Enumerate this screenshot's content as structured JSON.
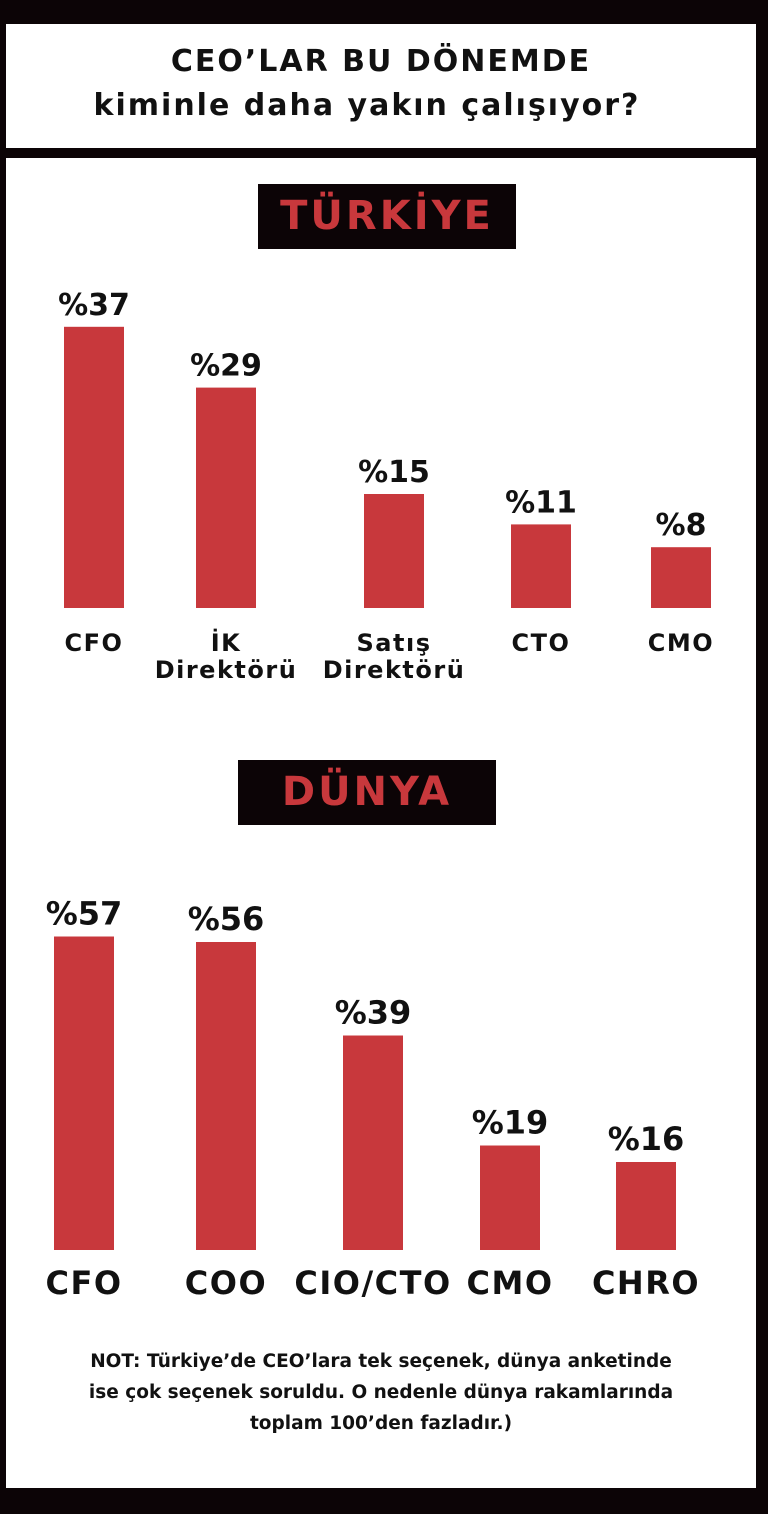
{
  "header": {
    "title_line1": "CEO’LAR BU DÖNEMDE",
    "title_line2": "kiminle daha yakın çalışıyor?"
  },
  "colors": {
    "bar": "#c8383c",
    "frame": "#0c0406",
    "section_text": "#c8383c"
  },
  "chart_data": [
    {
      "type": "bar",
      "title": "TÜRKİYE",
      "value_prefix": "%",
      "categories": [
        [
          "CFO"
        ],
        [
          "İK",
          "Direktörü"
        ],
        [
          "Satış",
          "Direktörü"
        ],
        [
          "CTO"
        ],
        [
          "CMO"
        ]
      ],
      "values": [
        37,
        29,
        15,
        11,
        8
      ],
      "data_labels": [
        "%37",
        "%29",
        "%15",
        "%11",
        "%8"
      ]
    },
    {
      "type": "bar",
      "title": "DÜNYA",
      "value_prefix": "%",
      "categories": [
        [
          "CFO"
        ],
        [
          "COO"
        ],
        [
          "CIO/CTO"
        ],
        [
          "CMO"
        ],
        [
          "CHRO"
        ]
      ],
      "values": [
        57,
        56,
        39,
        19,
        16
      ],
      "data_labels": [
        "%57",
        "%56",
        "%39",
        "%19",
        "%16"
      ]
    }
  ],
  "note": {
    "lines": [
      "NOT: Türkiye’de CEO’lara tek seçenek, dünya anketinde",
      "ise çok seçenek soruldu. O nedenle dünya rakamlarında",
      "toplam 100’den fazladır.)"
    ]
  }
}
